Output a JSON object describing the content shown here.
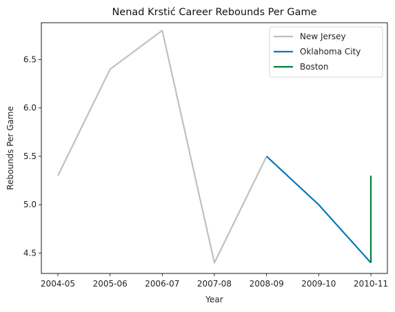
{
  "chart_data": {
    "type": "line",
    "title": "Nenad Krstić Career Rebounds Per Game",
    "xlabel": "Year",
    "ylabel": "Rebounds Per Game",
    "categories": [
      "2004-05",
      "2005-06",
      "2006-07",
      "2007-08",
      "2008-09",
      "2009-10",
      "2010-11"
    ],
    "yticks": [
      "4.5",
      "5.0",
      "5.5",
      "6.0",
      "6.5"
    ],
    "ylim": [
      4.29,
      6.88
    ],
    "grid": false,
    "legend_position": "top-right",
    "series": [
      {
        "name": "New Jersey",
        "color": "#bfbfbf",
        "points": [
          {
            "x": "2004-05",
            "y": 5.3
          },
          {
            "x": "2005-06",
            "y": 6.4
          },
          {
            "x": "2006-07",
            "y": 6.8
          },
          {
            "x": "2007-08",
            "y": 4.4
          },
          {
            "x": "2008-09",
            "y": 5.5
          }
        ]
      },
      {
        "name": "Oklahoma City",
        "color": "#0077bb",
        "points": [
          {
            "x": "2008-09",
            "y": 5.5
          },
          {
            "x": "2009-10",
            "y": 5.0
          },
          {
            "x": "2010-11",
            "y": 4.4
          }
        ]
      },
      {
        "name": "Boston",
        "color": "#007a3d",
        "points": [
          {
            "x": "2010-11",
            "y": 4.4
          },
          {
            "x": "2010-11",
            "y": 5.3
          }
        ]
      }
    ]
  }
}
